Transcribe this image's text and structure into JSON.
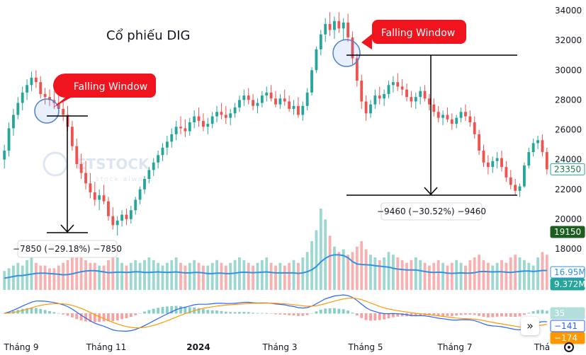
{
  "chart_data": {
    "type": "candlestick",
    "title": "Cổ phiếu DIG",
    "y_axis": {
      "ticks": [
        34000,
        32000,
        30000,
        28000,
        26000,
        24000,
        22000,
        20000,
        18000
      ],
      "side": "right"
    },
    "x_axis": {
      "ticks": [
        "Tháng 9",
        "Tháng 11",
        "2024",
        "Tháng 3",
        "Tháng 5",
        "Tháng 7",
        "Thá"
      ]
    },
    "price_series": [
      [
        24000,
        25000,
        23400,
        24600
      ],
      [
        24600,
        26500,
        24200,
        26100
      ],
      [
        26100,
        27400,
        25600,
        27000
      ],
      [
        27000,
        28200,
        26700,
        27800
      ],
      [
        27800,
        28900,
        27300,
        28500
      ],
      [
        28500,
        29400,
        28000,
        29000
      ],
      [
        29000,
        29900,
        28600,
        29500
      ],
      [
        29500,
        30000,
        28800,
        29200
      ],
      [
        29200,
        29600,
        28100,
        28400
      ],
      [
        28400,
        28800,
        27700,
        28200
      ],
      [
        28200,
        28700,
        27600,
        28000
      ],
      [
        28000,
        28600,
        27400,
        27800
      ],
      [
        27800,
        28300,
        27000,
        27400
      ],
      [
        27400,
        27900,
        26600,
        27000
      ],
      [
        27000,
        27600,
        25900,
        26200
      ],
      [
        26200,
        26600,
        24600,
        24900
      ],
      [
        24900,
        25400,
        23400,
        23700
      ],
      [
        23700,
        24400,
        22700,
        23100
      ],
      [
        23100,
        23900,
        22000,
        22400
      ],
      [
        22400,
        23100,
        21400,
        21800
      ],
      [
        21800,
        22500,
        20900,
        21300
      ],
      [
        21300,
        22000,
        20600,
        21600
      ],
      [
        21600,
        22300,
        21000,
        21200
      ],
      [
        21200,
        21500,
        19900,
        20200
      ],
      [
        20200,
        20800,
        19300,
        19600
      ],
      [
        19600,
        20200,
        18900,
        19900
      ],
      [
        19900,
        20600,
        19500,
        20300
      ],
      [
        20300,
        20700,
        19600,
        20000
      ],
      [
        20000,
        20900,
        19700,
        20600
      ],
      [
        20600,
        21500,
        20300,
        21300
      ],
      [
        21300,
        22200,
        21000,
        22000
      ],
      [
        22000,
        22900,
        21700,
        22700
      ],
      [
        22700,
        23500,
        22400,
        23300
      ],
      [
        23300,
        24100,
        22900,
        23800
      ],
      [
        23800,
        24600,
        23400,
        24300
      ],
      [
        24300,
        25100,
        23900,
        24800
      ],
      [
        24800,
        25600,
        24300,
        25200
      ],
      [
        25200,
        26100,
        24800,
        25700
      ],
      [
        25700,
        26600,
        25300,
        26200
      ],
      [
        26200,
        26900,
        25700,
        26100
      ],
      [
        26100,
        26700,
        25500,
        25900
      ],
      [
        25900,
        26800,
        25600,
        26500
      ],
      [
        26500,
        27300,
        26100,
        26900
      ],
      [
        26900,
        27500,
        26200,
        26600
      ],
      [
        26600,
        27100,
        25900,
        26200
      ],
      [
        26200,
        26800,
        25700,
        26400
      ],
      [
        26400,
        27200,
        26100,
        26900
      ],
      [
        26900,
        27600,
        26500,
        27200
      ],
      [
        27200,
        27800,
        26700,
        27000
      ],
      [
        27000,
        27600,
        26400,
        26800
      ],
      [
        26800,
        27400,
        26300,
        27100
      ],
      [
        27100,
        27800,
        26800,
        27500
      ],
      [
        27500,
        28300,
        27200,
        28000
      ],
      [
        28000,
        28700,
        27600,
        28300
      ],
      [
        28300,
        28800,
        27700,
        28000
      ],
      [
        28000,
        28400,
        27300,
        27600
      ],
      [
        27600,
        28100,
        27100,
        27800
      ],
      [
        27800,
        28600,
        27500,
        28300
      ],
      [
        28300,
        28900,
        27900,
        28500
      ],
      [
        28500,
        29000,
        27900,
        28100
      ],
      [
        28100,
        28600,
        27500,
        27700
      ],
      [
        27700,
        28400,
        27400,
        28100
      ],
      [
        28100,
        28700,
        27600,
        27900
      ],
      [
        27900,
        28300,
        27200,
        27400
      ],
      [
        27400,
        28000,
        27000,
        27600
      ],
      [
        27600,
        28200,
        26800,
        27000
      ],
      [
        27000,
        27900,
        26600,
        27600
      ],
      [
        27600,
        28800,
        27300,
        28500
      ],
      [
        28500,
        30200,
        28300,
        30000
      ],
      [
        30000,
        31600,
        29800,
        31400
      ],
      [
        31400,
        32700,
        31000,
        32400
      ],
      [
        32400,
        33500,
        31900,
        33100
      ],
      [
        33100,
        33900,
        32300,
        32700
      ],
      [
        32700,
        33600,
        32100,
        33300
      ],
      [
        33300,
        33900,
        32500,
        32800
      ],
      [
        32800,
        33500,
        32000,
        33200
      ],
      [
        33200,
        33800,
        31900,
        32200
      ],
      [
        32200,
        32600,
        30400,
        30800
      ],
      [
        30800,
        31100,
        28900,
        29300
      ],
      [
        29300,
        29700,
        27400,
        27900
      ],
      [
        27900,
        28300,
        26600,
        27100
      ],
      [
        27100,
        28000,
        26800,
        27700
      ],
      [
        27700,
        28700,
        27400,
        28300
      ],
      [
        28300,
        28900,
        27700,
        28100
      ],
      [
        28100,
        28700,
        27600,
        28400
      ],
      [
        28400,
        29300,
        28100,
        29000
      ],
      [
        29000,
        29600,
        28500,
        29200
      ],
      [
        29200,
        29800,
        28600,
        28900
      ],
      [
        28900,
        29400,
        28300,
        28700
      ],
      [
        28700,
        29100,
        27900,
        28200
      ],
      [
        28200,
        28600,
        27500,
        27900
      ],
      [
        27900,
        28500,
        27400,
        28200
      ],
      [
        28200,
        28900,
        27700,
        28600
      ],
      [
        28600,
        29000,
        27900,
        28100
      ],
      [
        28100,
        28400,
        27300,
        27700
      ],
      [
        27700,
        28100,
        26900,
        27200
      ],
      [
        27200,
        27600,
        26500,
        26800
      ],
      [
        26800,
        27300,
        26300,
        27000
      ],
      [
        27000,
        27500,
        26500,
        26700
      ],
      [
        26700,
        27100,
        26000,
        26400
      ],
      [
        26400,
        27000,
        26100,
        26800
      ],
      [
        26800,
        27500,
        26500,
        27200
      ],
      [
        27200,
        27700,
        26600,
        26900
      ],
      [
        26900,
        27300,
        26200,
        26500
      ],
      [
        26500,
        26900,
        25400,
        25700
      ],
      [
        25700,
        26000,
        24300,
        24600
      ],
      [
        24600,
        25000,
        23500,
        23800
      ],
      [
        23800,
        24300,
        23000,
        23500
      ],
      [
        23500,
        24200,
        23100,
        23900
      ],
      [
        23900,
        24500,
        23400,
        24100
      ],
      [
        24100,
        24600,
        23200,
        23500
      ],
      [
        23500,
        23900,
        22500,
        22800
      ],
      [
        22800,
        23300,
        22000,
        22300
      ],
      [
        22300,
        22700,
        21600,
        21900
      ],
      [
        21900,
        22400,
        21500,
        22200
      ],
      [
        22200,
        23800,
        22100,
        23600
      ],
      [
        23600,
        24800,
        23400,
        24500
      ],
      [
        24500,
        25400,
        24200,
        25100
      ],
      [
        25100,
        25600,
        24700,
        25300
      ],
      [
        25300,
        25700,
        24200,
        24500
      ],
      [
        24500,
        24800,
        23000,
        23350
      ]
    ],
    "volume_series": [
      7,
      8,
      9,
      10,
      9,
      11,
      12,
      10,
      9,
      9,
      8,
      8,
      9,
      10,
      11,
      12,
      14,
      12,
      11,
      10,
      10,
      9,
      9,
      11,
      13,
      12,
      10,
      9,
      10,
      11,
      10,
      11,
      12,
      11,
      10,
      9,
      10,
      11,
      12,
      10,
      9,
      10,
      11,
      10,
      9,
      9,
      10,
      11,
      10,
      9,
      10,
      11,
      12,
      11,
      10,
      9,
      10,
      11,
      12,
      10,
      9,
      10,
      9,
      10,
      11,
      10,
      12,
      14,
      18,
      22,
      30,
      26,
      20,
      16,
      14,
      15,
      13,
      14,
      16,
      18,
      15,
      13,
      12,
      11,
      12,
      14,
      13,
      12,
      11,
      10,
      11,
      12,
      11,
      10,
      9,
      10,
      11,
      10,
      9,
      10,
      11,
      10,
      9,
      11,
      12,
      13,
      11,
      10,
      9,
      10,
      11,
      10,
      12,
      13,
      12,
      11,
      10,
      9,
      12,
      14,
      13
    ],
    "volume_ma_values": [
      16.95,
      9.372
    ],
    "macd_values": {
      "macd": -141,
      "histogram": 35,
      "signal": -174
    },
    "last_price": 23350,
    "price_badge": "19150",
    "annotations": {
      "callout_left": "Falling Window",
      "callout_right": "Falling Window",
      "measure_left": "−7850 (−29.18%) −7850",
      "measure_right": "−9460 (−30.52%) −9460"
    },
    "watermark": "ETSTOCK",
    "colors": {
      "up": "#26a69a",
      "down": "#ef5350",
      "callout": "#f0141e",
      "volume_ma": "#2f92e5",
      "macd_line": "#2962ff",
      "signal_line": "#ff9800"
    },
    "badge_labels": {
      "last_price": "23350",
      "price_badge": "19150",
      "volume_ma_1": "16.95M",
      "volume_ma_2": "9.372M",
      "macd_hist": "35",
      "macd": "−141",
      "signal": "−174"
    }
  }
}
